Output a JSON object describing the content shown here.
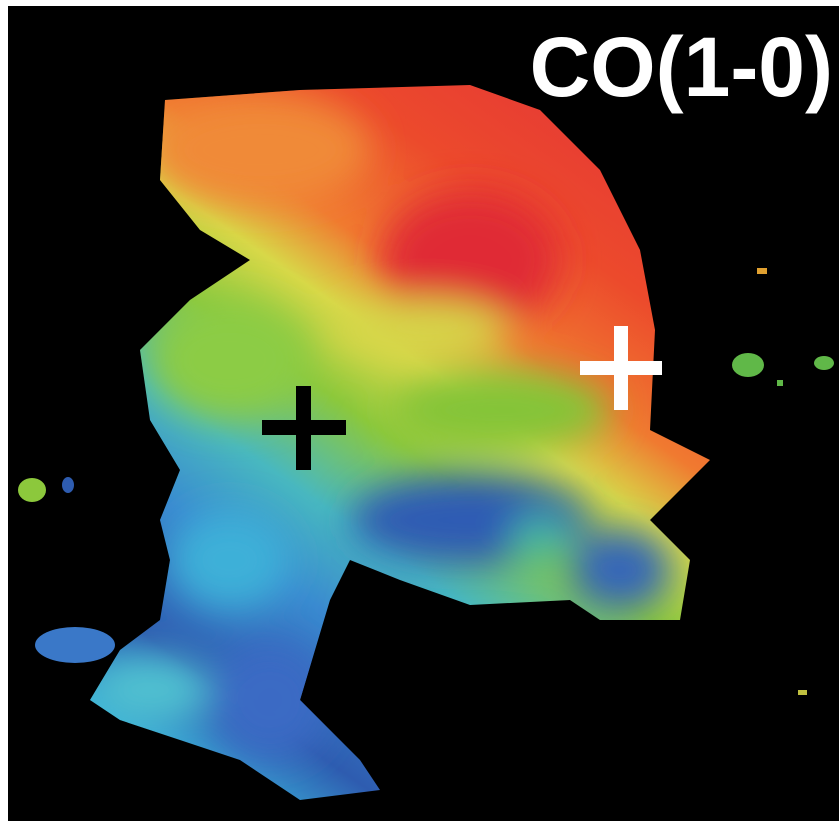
{
  "label": "CO(1-0)"
}
